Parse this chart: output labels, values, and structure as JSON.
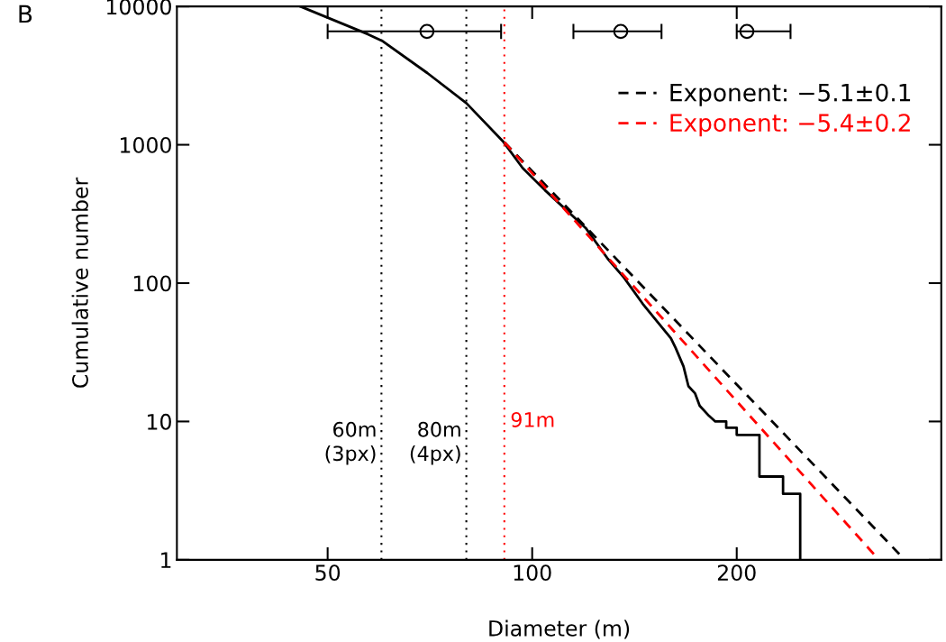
{
  "chart_data": {
    "type": "line",
    "xlabel": "Diameter (m)",
    "ylabel": "Cumulative number",
    "log": "xy",
    "xlim": [
      30,
      400
    ],
    "xticks": [
      50,
      100,
      200
    ],
    "ylim": [
      1,
      10000
    ],
    "yticks": [
      1,
      10,
      100,
      1000,
      10000
    ],
    "grid": false,
    "legend": "top right",
    "annotations": [
      "B"
    ],
    "ref_lines": [
      {
        "axis": "x",
        "value": 60,
        "label": "60m\n(3px)",
        "color": "#000000",
        "line_style": "dotted"
      },
      {
        "axis": "x",
        "value": 80,
        "label": "80m\n(4px)",
        "color": "#000000",
        "line_style": "dotted"
      },
      {
        "axis": "x",
        "value": 91,
        "label": "91m",
        "color": "#ff0000",
        "line_style": "dotted"
      }
    ],
    "series": [
      {
        "color": "#000000",
        "line_style": "solid",
        "x": [
          45.6,
          57.3,
          60.3,
          70.1,
          80,
          90.7,
          96.8,
          104.4,
          119.9,
          129.2,
          136.4,
          145.4,
          151.7,
          160,
          162.6,
          167,
          169.8,
          173.6,
          176.4,
          182,
          186,
          193,
          193,
          200,
          200,
          216,
          216,
          234,
          234,
          248,
          248
        ],
        "values": [
          10000,
          6300,
          5600,
          3300,
          2000,
          1050,
          680,
          470,
          250,
          150,
          110,
          71,
          55,
          40,
          34,
          25,
          18,
          16,
          13,
          11,
          10,
          10,
          9,
          9,
          8,
          8,
          4,
          4,
          3,
          3,
          1
        ]
      },
      {
        "type": "line",
        "name": "Exponent: −5.1±0.1",
        "color": "#000000",
        "line_style": "dashed",
        "x": [
          91,
          347
        ],
        "values": [
          1045,
          1.1
        ]
      },
      {
        "type": "line",
        "name": "Exponent: −5.4±0.2",
        "color": "#ff0000",
        "line_style": "dashed",
        "x": [
          91,
          321
        ],
        "values": [
          1045,
          1.05
        ]
      },
      {
        "type": "scatter",
        "color": "#000000",
        "marker": "circle",
        "x": [
          70,
          135,
          207
        ],
        "values": [
          6600,
          6600,
          6600
        ],
        "xerrors": [
          [
            50,
            90
          ],
          [
            115,
            155
          ],
          [
            200,
            240
          ]
        ]
      }
    ]
  }
}
